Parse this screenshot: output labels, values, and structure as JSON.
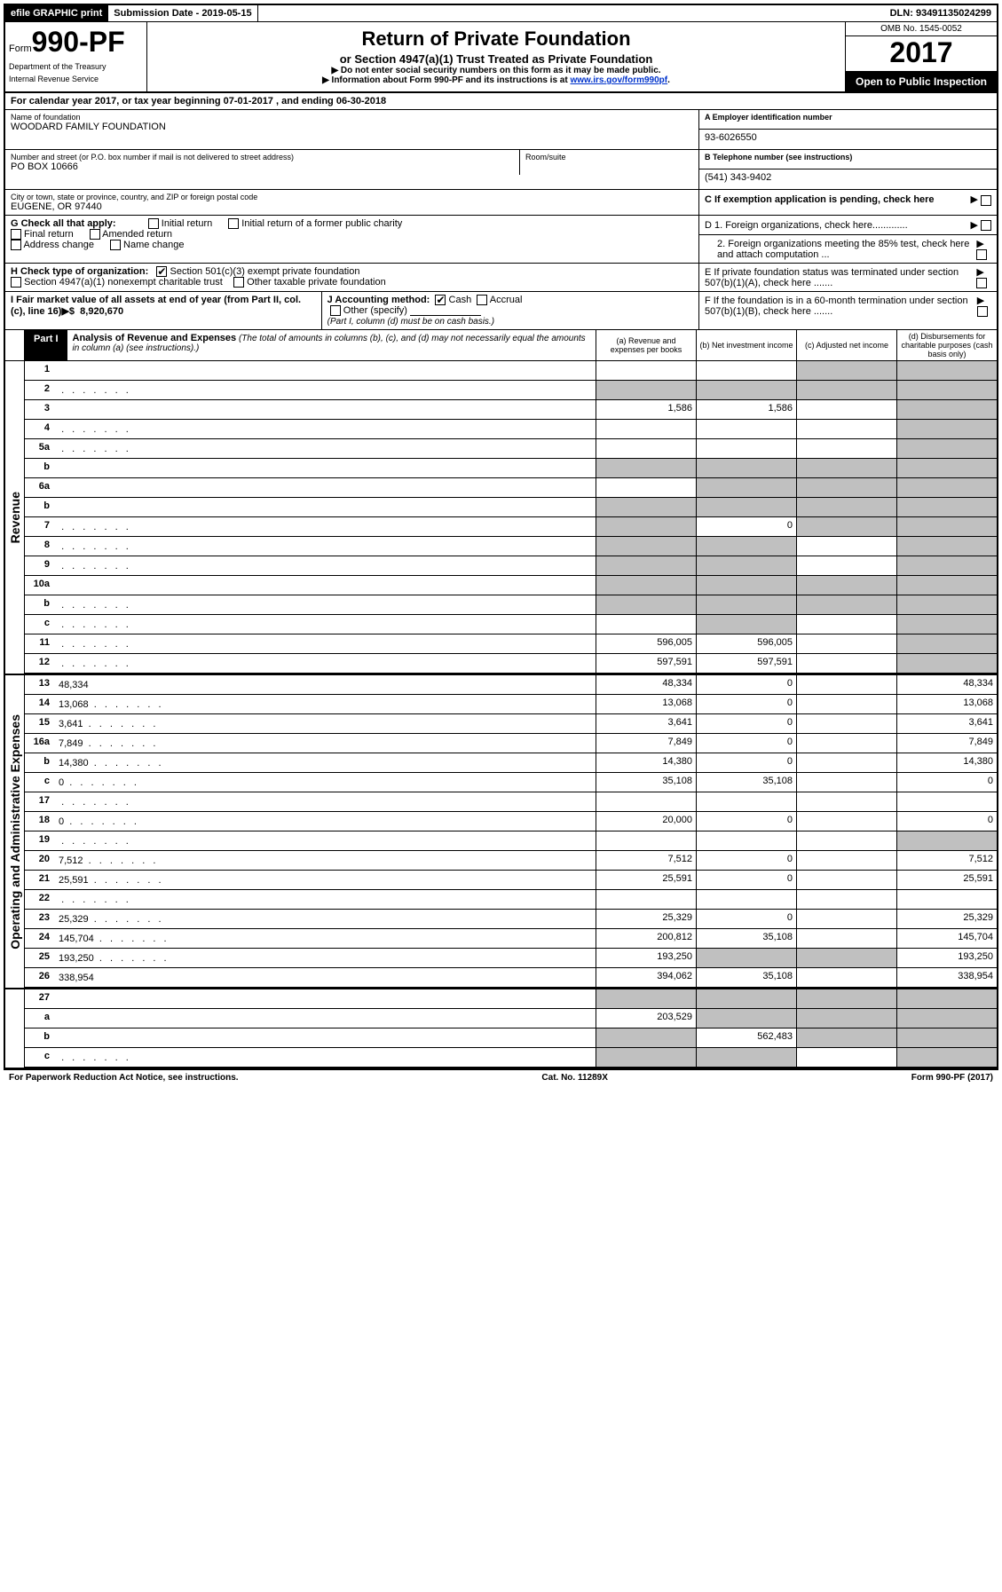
{
  "topbar": {
    "efile": "efile GRAPHIC print",
    "submission": "Submission Date - 2019-05-15",
    "dln_label": "DLN:",
    "dln": "93491135024299"
  },
  "header": {
    "form_prefix": "Form",
    "form_number": "990-PF",
    "dept1": "Department of the Treasury",
    "dept2": "Internal Revenue Service",
    "title": "Return of Private Foundation",
    "subtitle": "or Section 4947(a)(1) Trust Treated as Private Foundation",
    "note1": "▶ Do not enter social security numbers on this form as it may be made public.",
    "note2_pre": "▶ Information about Form 990-PF and its instructions is at ",
    "note2_link": "www.irs.gov/form990pf",
    "omb": "OMB No. 1545-0052",
    "year": "2017",
    "open": "Open to Public Inspection"
  },
  "calyear": {
    "pre": "For calendar year 2017, or tax year beginning ",
    "begin": "07-01-2017",
    "mid": " , and ending ",
    "end": "06-30-2018"
  },
  "entity": {
    "name_label": "Name of foundation",
    "name": "WOODARD FAMILY FOUNDATION",
    "ein_label": "A Employer identification number",
    "ein": "93-6026550",
    "street_label": "Number and street (or P.O. box number if mail is not delivered to street address)",
    "room_label": "Room/suite",
    "street": "PO BOX 10666",
    "phone_label": "B Telephone number (see instructions)",
    "phone": "(541) 343-9402",
    "city_label": "City or town, state or province, country, and ZIP or foreign postal code",
    "city": "EUGENE, OR  97440",
    "c_label": "C If exemption application is pending, check here"
  },
  "section_g": {
    "label": "G Check all that apply:",
    "items": [
      "Initial return",
      "Initial return of a former public charity",
      "Final return",
      "Amended return",
      "Address change",
      "Name change"
    ]
  },
  "section_d": {
    "d1": "D 1. Foreign organizations, check here.............",
    "d2": "2. Foreign organizations meeting the 85% test, check here and attach computation ..."
  },
  "section_h": {
    "label": "H Check type of organization:",
    "opt1": "Section 501(c)(3) exempt private foundation",
    "opt2": "Section 4947(a)(1) nonexempt charitable trust",
    "opt3": "Other taxable private foundation"
  },
  "section_e": {
    "text": "E  If private foundation status was terminated under section 507(b)(1)(A), check here ......."
  },
  "section_i": {
    "label": "I Fair market value of all assets at end of year (from Part II, col. (c), line 16)▶$",
    "value": "8,920,670"
  },
  "section_j": {
    "label": "J Accounting method:",
    "cash": "Cash",
    "accrual": "Accrual",
    "other": "Other (specify)",
    "note": "(Part I, column (d) must be on cash basis.)"
  },
  "section_f": {
    "text": "F  If the foundation is in a 60-month termination under section 507(b)(1)(B), check here ......."
  },
  "part1": {
    "tag": "Part I",
    "title": "Analysis of Revenue and Expenses",
    "title_note": "(The total of amounts in columns (b), (c), and (d) may not necessarily equal the amounts in column (a) (see instructions).)",
    "col_a": "(a) Revenue and expenses per books",
    "col_b": "(b) Net investment income",
    "col_c": "(c) Adjusted net income",
    "col_d": "(d) Disbursements for charitable purposes (cash basis only)"
  },
  "side_labels": {
    "rev": "Revenue",
    "exp": "Operating and Administrative Expenses"
  },
  "revenue_lines": [
    {
      "n": "1",
      "d": "",
      "a": "",
      "b": "",
      "c": "",
      "sd": true,
      "sc": true
    },
    {
      "n": "2",
      "d": "",
      "a": "",
      "b": "",
      "c": "",
      "sa": true,
      "sb": true,
      "sc": true,
      "sd": true,
      "dots": true
    },
    {
      "n": "3",
      "d": "",
      "a": "1,586",
      "b": "1,586",
      "c": "",
      "sd": true
    },
    {
      "n": "4",
      "d": "",
      "a": "",
      "b": "",
      "c": "",
      "sd": true,
      "dots": true
    },
    {
      "n": "5a",
      "d": "",
      "a": "",
      "b": "",
      "c": "",
      "sd": true,
      "dots": true
    },
    {
      "n": "b",
      "d": "",
      "a": "",
      "b": "",
      "c": "",
      "sa": true,
      "sb": true,
      "sc": true,
      "sd": true,
      "inset": true
    },
    {
      "n": "6a",
      "d": "",
      "a": "",
      "b": "",
      "c": "",
      "sb": true,
      "sc": true,
      "sd": true
    },
    {
      "n": "b",
      "d": "",
      "a": "",
      "b": "",
      "c": "",
      "sa": true,
      "sb": true,
      "sc": true,
      "sd": true,
      "inset": true
    },
    {
      "n": "7",
      "d": "",
      "a": "",
      "b": "0",
      "c": "",
      "sa": true,
      "sc": true,
      "sd": true,
      "dots": true
    },
    {
      "n": "8",
      "d": "",
      "a": "",
      "b": "",
      "c": "",
      "sa": true,
      "sb": true,
      "sd": true,
      "dots": true
    },
    {
      "n": "9",
      "d": "",
      "a": "",
      "b": "",
      "c": "",
      "sa": true,
      "sb": true,
      "sd": true,
      "dots": true
    },
    {
      "n": "10a",
      "d": "",
      "a": "",
      "b": "",
      "c": "",
      "sa": true,
      "sb": true,
      "sc": true,
      "sd": true,
      "inset": true
    },
    {
      "n": "b",
      "d": "",
      "a": "",
      "b": "",
      "c": "",
      "sa": true,
      "sb": true,
      "sc": true,
      "sd": true,
      "inset": true,
      "dots": true
    },
    {
      "n": "c",
      "d": "",
      "a": "",
      "b": "",
      "c": "",
      "sb": true,
      "sd": true,
      "dots": true
    },
    {
      "n": "11",
      "d": "",
      "a": "596,005",
      "b": "596,005",
      "c": "",
      "sd": true,
      "dots": true
    },
    {
      "n": "12",
      "d": "",
      "a": "597,591",
      "b": "597,591",
      "c": "",
      "sd": true,
      "dots": true
    }
  ],
  "expense_lines": [
    {
      "n": "13",
      "d": "48,334",
      "a": "48,334",
      "b": "0",
      "c": ""
    },
    {
      "n": "14",
      "d": "13,068",
      "a": "13,068",
      "b": "0",
      "c": "",
      "dots": true
    },
    {
      "n": "15",
      "d": "3,641",
      "a": "3,641",
      "b": "0",
      "c": "",
      "dots": true
    },
    {
      "n": "16a",
      "d": "7,849",
      "a": "7,849",
      "b": "0",
      "c": "",
      "dots": true
    },
    {
      "n": "b",
      "d": "14,380",
      "a": "14,380",
      "b": "0",
      "c": "",
      "dots": true
    },
    {
      "n": "c",
      "d": "0",
      "a": "35,108",
      "b": "35,108",
      "c": "",
      "dots": true
    },
    {
      "n": "17",
      "d": "",
      "a": "",
      "b": "",
      "c": "",
      "dots": true
    },
    {
      "n": "18",
      "d": "0",
      "a": "20,000",
      "b": "0",
      "c": "",
      "dots": true
    },
    {
      "n": "19",
      "d": "",
      "a": "",
      "b": "",
      "c": "",
      "sd": true,
      "dots": true
    },
    {
      "n": "20",
      "d": "7,512",
      "a": "7,512",
      "b": "0",
      "c": "",
      "dots": true
    },
    {
      "n": "21",
      "d": "25,591",
      "a": "25,591",
      "b": "0",
      "c": "",
      "dots": true
    },
    {
      "n": "22",
      "d": "",
      "a": "",
      "b": "",
      "c": "",
      "dots": true
    },
    {
      "n": "23",
      "d": "25,329",
      "a": "25,329",
      "b": "0",
      "c": "",
      "dots": true
    },
    {
      "n": "24",
      "d": "145,704",
      "a": "200,812",
      "b": "35,108",
      "c": "",
      "dots": true
    },
    {
      "n": "25",
      "d": "193,250",
      "a": "193,250",
      "b": "",
      "c": "",
      "sb": true,
      "sc": true,
      "dots": true
    },
    {
      "n": "26",
      "d": "338,954",
      "a": "394,062",
      "b": "35,108",
      "c": ""
    }
  ],
  "bottom_lines": [
    {
      "n": "27",
      "d": "",
      "a": "",
      "b": "",
      "c": "",
      "sa": true,
      "sb": true,
      "sc": true,
      "sd": true
    },
    {
      "n": "a",
      "d": "",
      "a": "203,529",
      "b": "",
      "c": "",
      "sb": true,
      "sc": true,
      "sd": true
    },
    {
      "n": "b",
      "d": "",
      "a": "",
      "b": "562,483",
      "c": "",
      "sa": true,
      "sc": true,
      "sd": true
    },
    {
      "n": "c",
      "d": "",
      "a": "",
      "b": "",
      "c": "",
      "sa": true,
      "sb": true,
      "sd": true,
      "dots": true
    }
  ],
  "footer": {
    "pra": "For Paperwork Reduction Act Notice, see instructions.",
    "cat": "Cat. No. 11289X",
    "form": "Form 990-PF (2017)"
  },
  "colors": {
    "shade": "#c0c0c0",
    "link": "#0033cc"
  }
}
